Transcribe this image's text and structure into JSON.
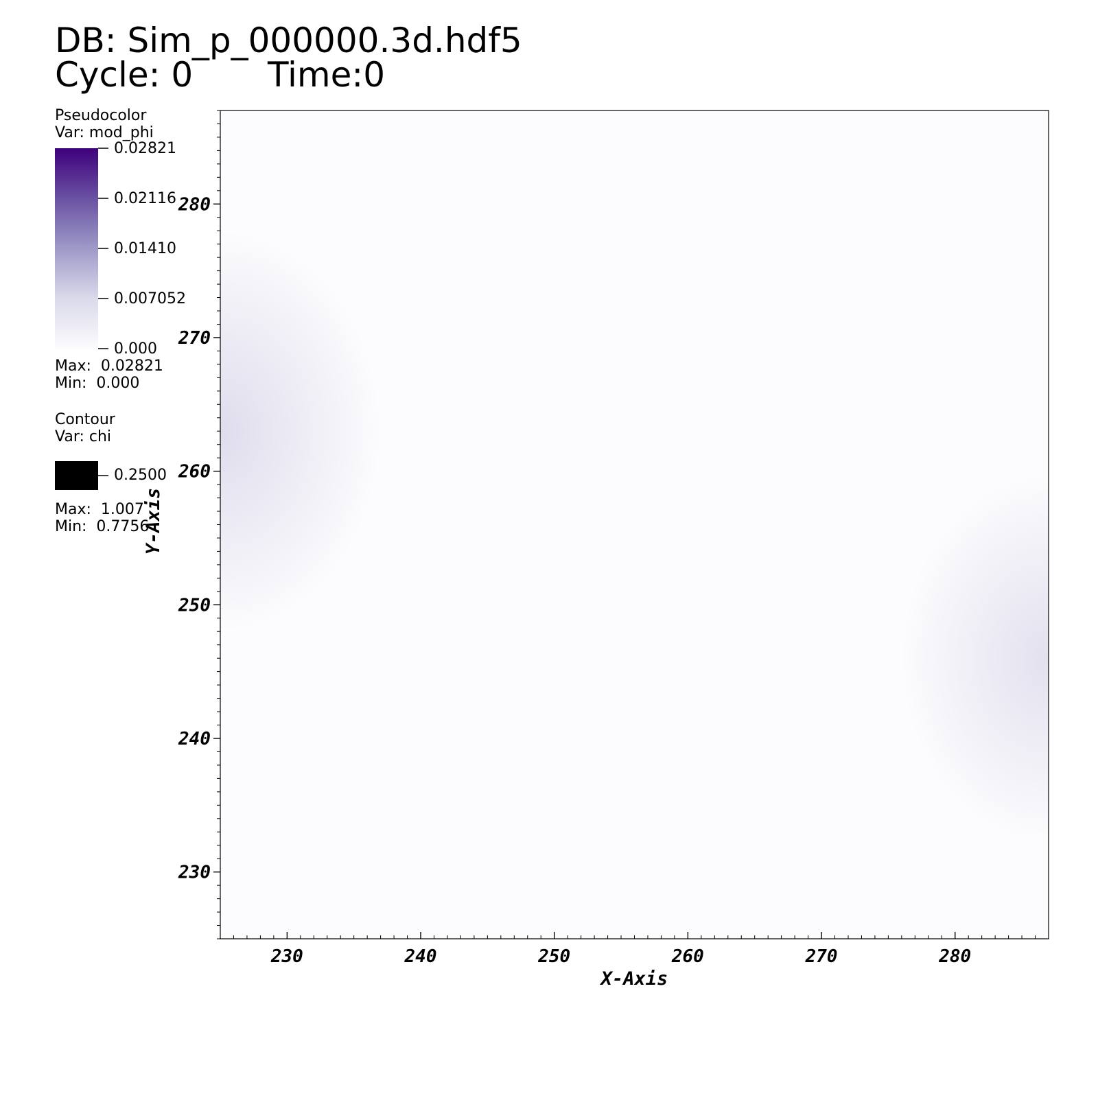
{
  "header": {
    "db": "DB: Sim_p_000000.3d.hdf5",
    "cycle": "Cycle: 0",
    "time": "Time:0"
  },
  "legend": {
    "pseudocolor": {
      "title": "Pseudocolor",
      "var": "Var: mod_phi",
      "ticks": [
        "0.02821",
        "0.02116",
        "0.01410",
        "0.007052",
        "0.000"
      ],
      "max": "Max:  0.02821",
      "min": "Min:  0.000",
      "colors": {
        "high": "#3f007d",
        "mid": "#9e9ac8",
        "low": "#fcfbfd"
      }
    },
    "contour": {
      "title": "Contour",
      "var": "Var: chi",
      "level": "0.2500",
      "max": "Max:  1.007",
      "min": "Min:  0.7756",
      "swatch_color": "#000000"
    }
  },
  "chart_data": {
    "type": "heatmap",
    "xlabel": "X-Axis",
    "ylabel": "Y-Axis",
    "xlim": [
      225,
      287
    ],
    "ylim": [
      225,
      287
    ],
    "xticks": [
      230,
      240,
      250,
      260,
      270,
      280
    ],
    "yticks": [
      230,
      240,
      250,
      260,
      270,
      280
    ],
    "field_range": [
      0,
      0.02821
    ],
    "blobs": [
      {
        "x": 225,
        "y": 263,
        "value": 0.0025,
        "spread": 12
      },
      {
        "x": 287,
        "y": 246,
        "value": 0.0022,
        "spread": 11
      }
    ]
  }
}
